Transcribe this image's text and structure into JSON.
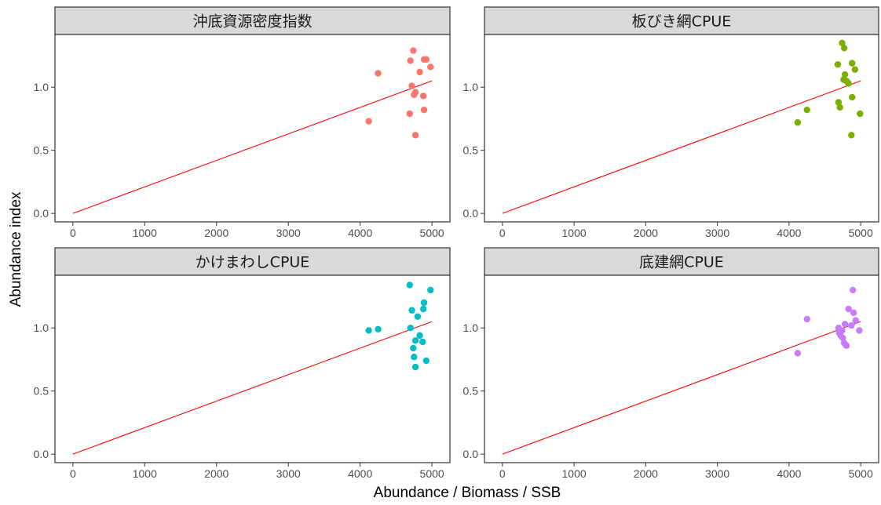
{
  "figure": {
    "xlabel": "Abundance / Biomass / SSB",
    "ylabel": "Abundance index",
    "line_color": "#ff0000",
    "strip_fill": "#d9d9d9"
  },
  "chart_data": [
    {
      "type": "scatter",
      "title": "沖底資源密度指数",
      "color": "#f8766d",
      "xlim": [
        0,
        5000
      ],
      "ylim": [
        0,
        1.35
      ],
      "xticks": [
        0,
        1000,
        2000,
        3000,
        4000,
        5000
      ],
      "yticks": [
        0.0,
        0.5,
        1.0
      ],
      "ytick_labels": [
        "0.0",
        "0.5",
        "1.0"
      ],
      "fit_line": {
        "x": [
          0,
          5000
        ],
        "y": [
          0,
          1.05
        ]
      },
      "points": [
        {
          "x": 4120,
          "y": 0.73
        },
        {
          "x": 4250,
          "y": 1.11
        },
        {
          "x": 4690,
          "y": 0.79
        },
        {
          "x": 4700,
          "y": 1.21
        },
        {
          "x": 4720,
          "y": 1.01
        },
        {
          "x": 4740,
          "y": 1.29
        },
        {
          "x": 4750,
          "y": 0.94
        },
        {
          "x": 4770,
          "y": 0.96
        },
        {
          "x": 4770,
          "y": 0.62
        },
        {
          "x": 4830,
          "y": 1.12
        },
        {
          "x": 4880,
          "y": 0.93
        },
        {
          "x": 4890,
          "y": 0.82
        },
        {
          "x": 4890,
          "y": 1.22
        },
        {
          "x": 4920,
          "y": 1.22
        },
        {
          "x": 4980,
          "y": 1.16
        }
      ]
    },
    {
      "type": "scatter",
      "title": "板びき網CPUE",
      "color": "#7cae00",
      "xlim": [
        0,
        5000
      ],
      "ylim": [
        0,
        1.35
      ],
      "xticks": [
        0,
        1000,
        2000,
        3000,
        4000,
        5000
      ],
      "yticks": [
        0.0,
        0.5,
        1.0
      ],
      "ytick_labels": [
        "0.0",
        "0.5",
        "1.0"
      ],
      "fit_line": {
        "x": [
          0,
          5000
        ],
        "y": [
          0,
          1.05
        ]
      },
      "points": [
        {
          "x": 4120,
          "y": 0.72
        },
        {
          "x": 4250,
          "y": 0.82
        },
        {
          "x": 4680,
          "y": 1.18
        },
        {
          "x": 4690,
          "y": 0.88
        },
        {
          "x": 4710,
          "y": 0.84
        },
        {
          "x": 4740,
          "y": 1.35
        },
        {
          "x": 4760,
          "y": 1.06
        },
        {
          "x": 4770,
          "y": 1.31
        },
        {
          "x": 4780,
          "y": 1.1
        },
        {
          "x": 4800,
          "y": 1.05
        },
        {
          "x": 4830,
          "y": 1.03
        },
        {
          "x": 4870,
          "y": 0.62
        },
        {
          "x": 4880,
          "y": 0.92
        },
        {
          "x": 4880,
          "y": 1.19
        },
        {
          "x": 4920,
          "y": 1.14
        },
        {
          "x": 4990,
          "y": 0.79
        }
      ]
    },
    {
      "type": "scatter",
      "title": "かけまわしCPUE",
      "color": "#00bfc4",
      "xlim": [
        0,
        5000
      ],
      "ylim": [
        0,
        1.35
      ],
      "xticks": [
        0,
        1000,
        2000,
        3000,
        4000,
        5000
      ],
      "yticks": [
        0.0,
        0.5,
        1.0
      ],
      "ytick_labels": [
        "0.0",
        "0.5",
        "1.0"
      ],
      "fit_line": {
        "x": [
          0,
          5000
        ],
        "y": [
          0,
          1.05
        ]
      },
      "points": [
        {
          "x": 4120,
          "y": 0.98
        },
        {
          "x": 4250,
          "y": 0.99
        },
        {
          "x": 4690,
          "y": 1.34
        },
        {
          "x": 4700,
          "y": 1.0
        },
        {
          "x": 4720,
          "y": 1.14
        },
        {
          "x": 4740,
          "y": 0.84
        },
        {
          "x": 4750,
          "y": 0.77
        },
        {
          "x": 4770,
          "y": 0.9
        },
        {
          "x": 4770,
          "y": 0.69
        },
        {
          "x": 4800,
          "y": 1.09
        },
        {
          "x": 4830,
          "y": 0.94
        },
        {
          "x": 4870,
          "y": 0.89
        },
        {
          "x": 4880,
          "y": 1.15
        },
        {
          "x": 4890,
          "y": 1.2
        },
        {
          "x": 4920,
          "y": 0.74
        },
        {
          "x": 4980,
          "y": 1.3
        }
      ]
    },
    {
      "type": "scatter",
      "title": "底建網CPUE",
      "color": "#c77cff",
      "xlim": [
        0,
        5000
      ],
      "ylim": [
        0,
        1.35
      ],
      "xticks": [
        0,
        1000,
        2000,
        3000,
        4000,
        5000
      ],
      "yticks": [
        0.0,
        0.5,
        1.0
      ],
      "ytick_labels": [
        "0.0",
        "0.5",
        "1.0"
      ],
      "fit_line": {
        "x": [
          0,
          5000
        ],
        "y": [
          0,
          1.05
        ]
      },
      "points": [
        {
          "x": 4120,
          "y": 0.8
        },
        {
          "x": 4250,
          "y": 1.07
        },
        {
          "x": 4690,
          "y": 1.0
        },
        {
          "x": 4700,
          "y": 0.96
        },
        {
          "x": 4720,
          "y": 0.94
        },
        {
          "x": 4740,
          "y": 0.98
        },
        {
          "x": 4750,
          "y": 0.92
        },
        {
          "x": 4770,
          "y": 0.88
        },
        {
          "x": 4780,
          "y": 1.03
        },
        {
          "x": 4800,
          "y": 0.86
        },
        {
          "x": 4830,
          "y": 1.15
        },
        {
          "x": 4870,
          "y": 1.02
        },
        {
          "x": 4890,
          "y": 1.3
        },
        {
          "x": 4900,
          "y": 1.12
        },
        {
          "x": 4930,
          "y": 1.06
        },
        {
          "x": 4980,
          "y": 0.98
        }
      ]
    }
  ]
}
